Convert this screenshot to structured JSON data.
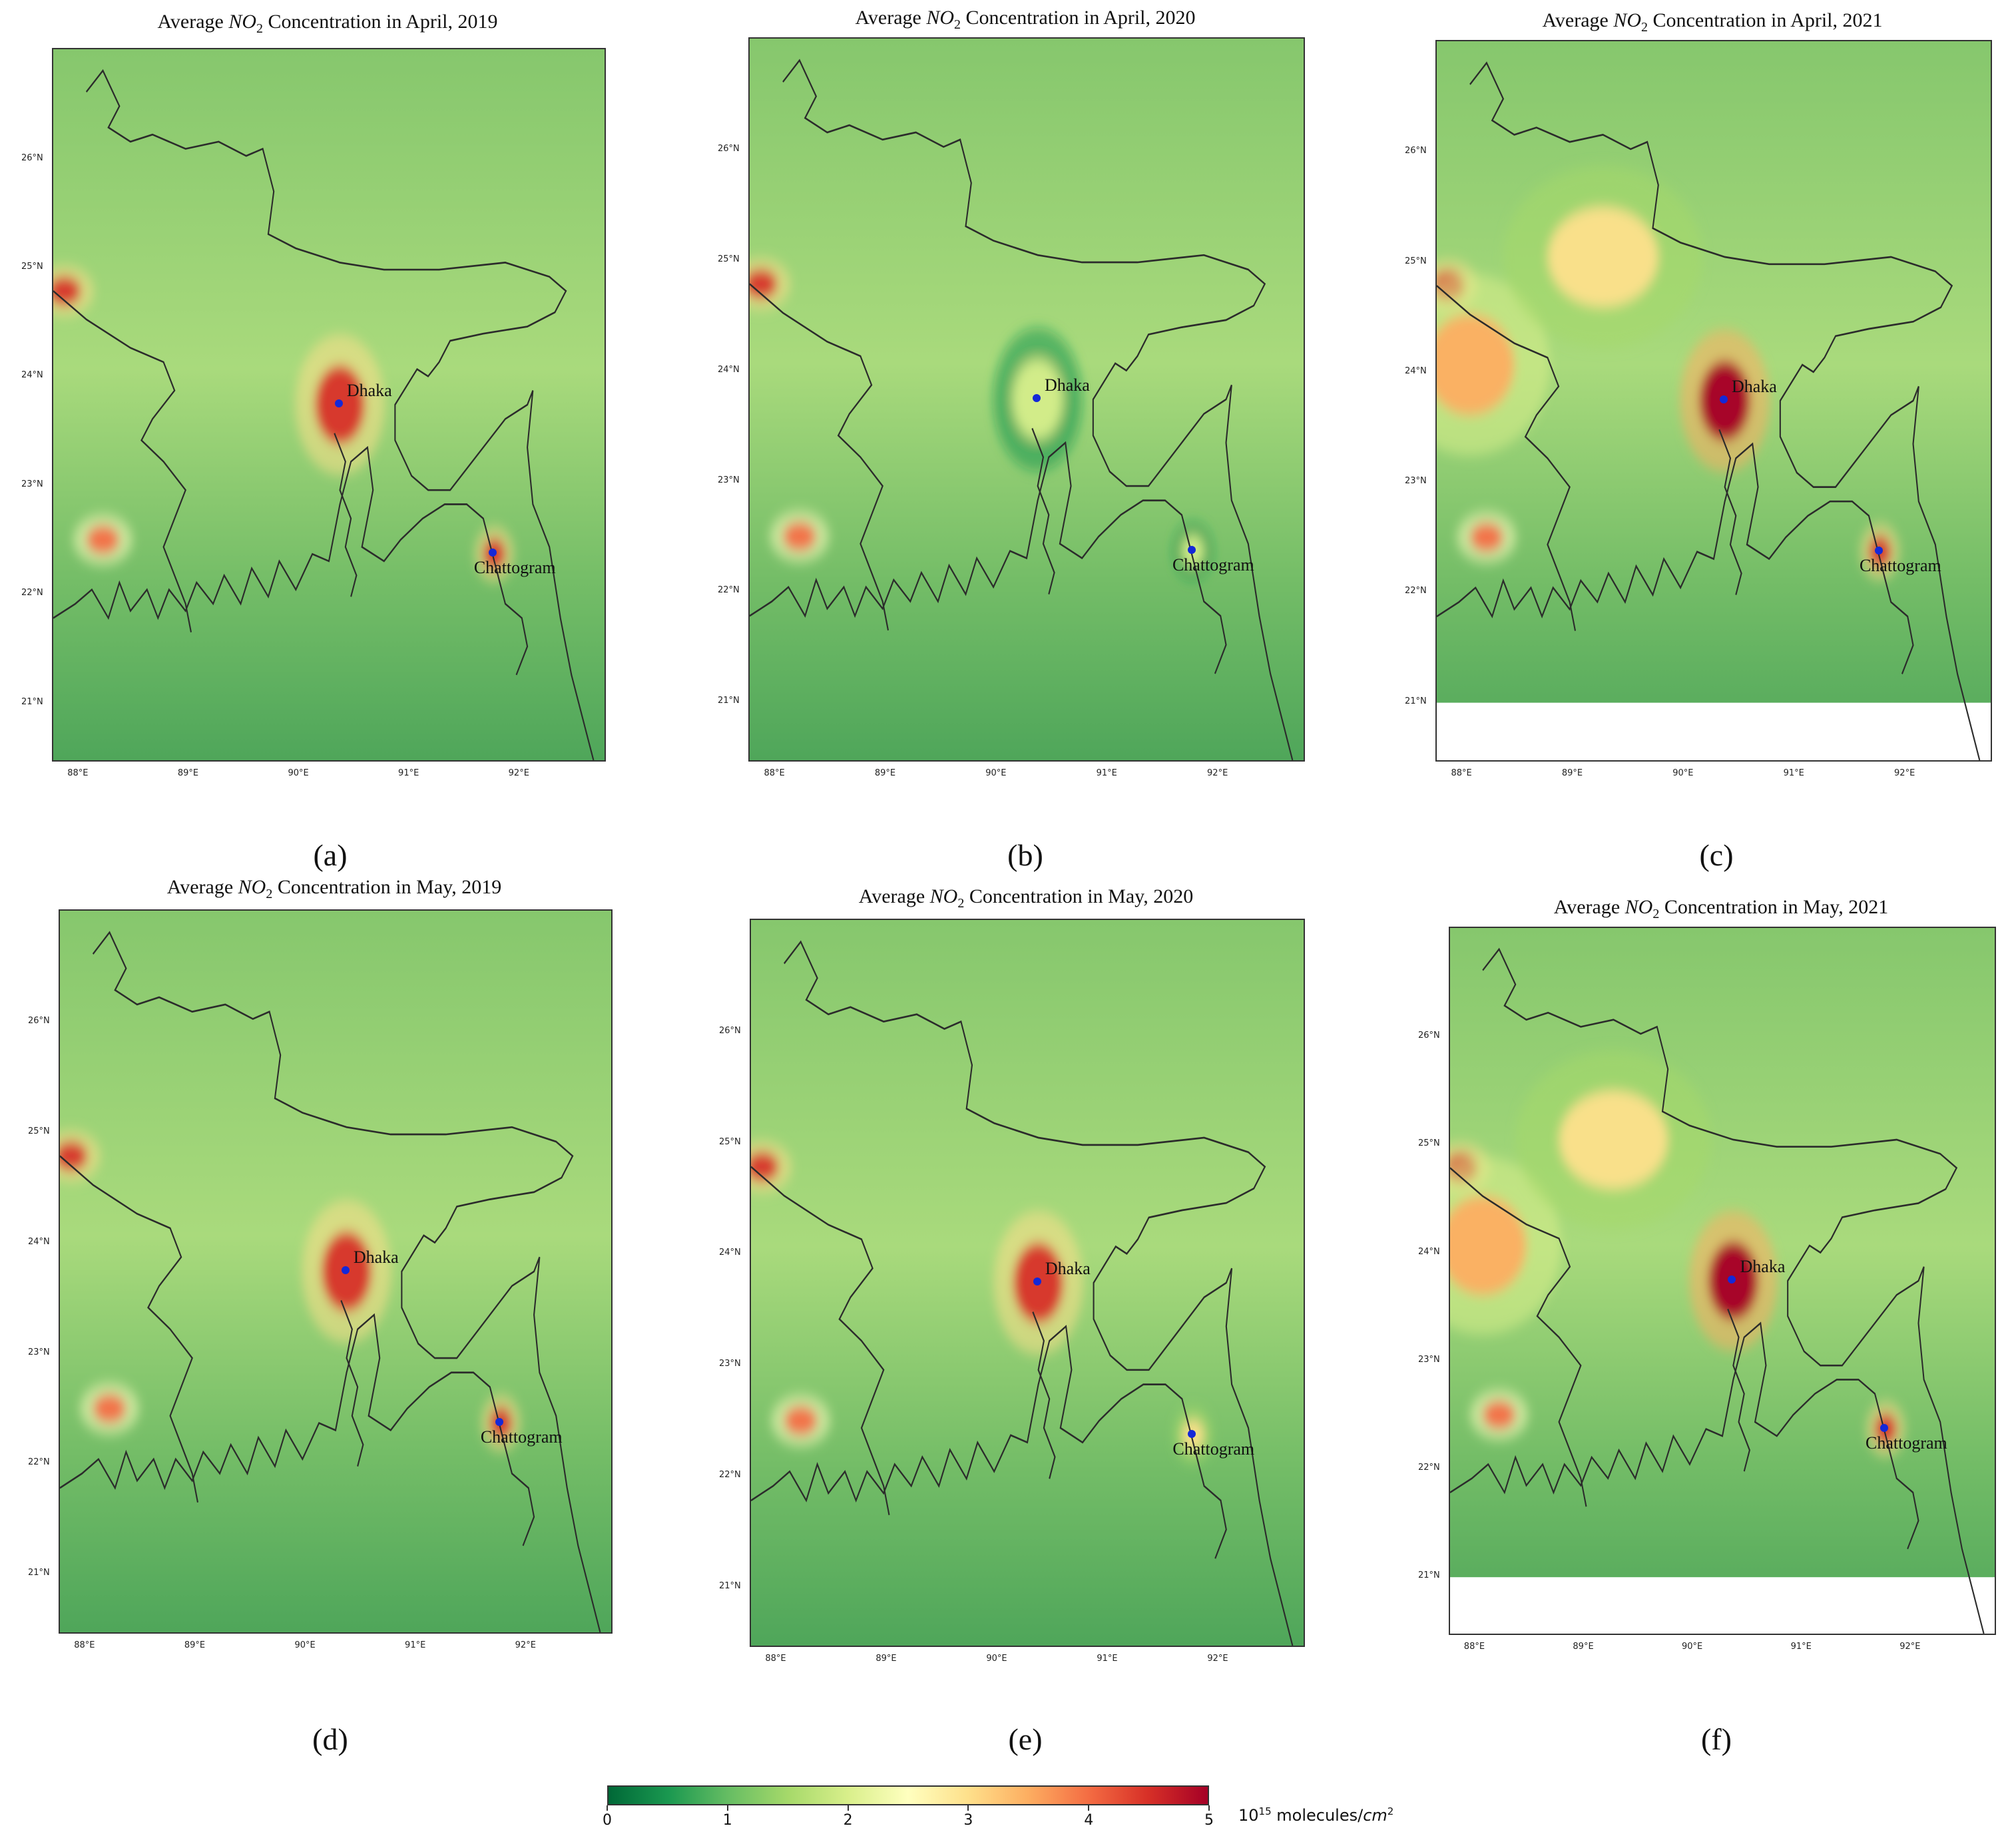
{
  "panels": [
    {
      "id": "a",
      "label": "(a)",
      "title_pre": "Average ",
      "title_species": "NO",
      "title_sub": "2",
      "title_post": " Concentration in April, 2019",
      "no2_dhaka_level": "high",
      "no2_chattogram_level": "high",
      "blank_south": false
    },
    {
      "id": "b",
      "label": "(b)",
      "title_pre": "Average ",
      "title_species": "NO",
      "title_sub": "2",
      "title_post": " Concentration in April, 2020",
      "no2_dhaka_level": "low",
      "no2_chattogram_level": "low",
      "blank_south": false
    },
    {
      "id": "c",
      "label": "(c)",
      "title_pre": "Average ",
      "title_species": "NO",
      "title_sub": "2",
      "title_post": " Concentration in April, 2021",
      "no2_dhaka_level": "very-high",
      "no2_chattogram_level": "high",
      "blank_south": true
    },
    {
      "id": "d",
      "label": "(d)",
      "title_pre": "Average ",
      "title_species": "NO",
      "title_sub": "2",
      "title_post": " Concentration in May, 2019",
      "no2_dhaka_level": "high",
      "no2_chattogram_level": "high",
      "blank_south": false
    },
    {
      "id": "e",
      "label": "(e)",
      "title_pre": "Average ",
      "title_species": "NO",
      "title_sub": "2",
      "title_post": " Concentration in May, 2020",
      "no2_dhaka_level": "high",
      "no2_chattogram_level": "medium",
      "blank_south": false
    },
    {
      "id": "f",
      "label": "(f)",
      "title_pre": "Average ",
      "title_species": "NO",
      "title_sub": "2",
      "title_post": " Concentration in May, 2021",
      "no2_dhaka_level": "very-high",
      "no2_chattogram_level": "high",
      "blank_south": true
    }
  ],
  "cities": {
    "dhaka": "Dhaka",
    "chattogram": "Chattogram"
  },
  "lat_ticks": [
    "26°N",
    "25°N",
    "24°N",
    "23°N",
    "22°N",
    "21°N"
  ],
  "lon_ticks": [
    "88°E",
    "89°E",
    "90°E",
    "91°E",
    "92°E"
  ],
  "colorbar": {
    "ticks": [
      "0",
      "1",
      "2",
      "3",
      "4",
      "5"
    ],
    "range": [
      0,
      5
    ],
    "colormap": [
      "#006837",
      "#1a9850",
      "#66bd63",
      "#a6d96a",
      "#d9ef8b",
      "#ffffbf",
      "#fee08b",
      "#fdae61",
      "#f46d43",
      "#d73027",
      "#a50026"
    ],
    "units_base": "10",
    "units_exp": "15",
    "units_text": " molecules/",
    "units_area": "cm",
    "units_area_exp": "2"
  }
}
